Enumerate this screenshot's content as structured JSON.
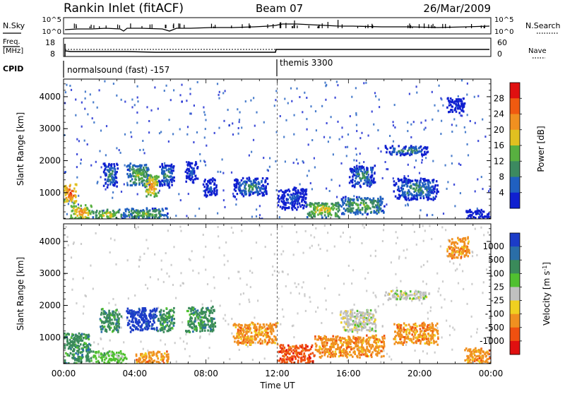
{
  "header": {
    "station": "Rankin Inlet (fitACF)",
    "beam": "Beam 07",
    "date": "26/Mar/2009"
  },
  "nsky_strip": {
    "left_label": "N.Sky",
    "left_ticks": [
      "10^5",
      "10^0"
    ],
    "right_ticks": [
      "10^5",
      "10^0"
    ],
    "right_label": "N.Search"
  },
  "freq_strip": {
    "left_label_1": "Freq.",
    "left_label_2": "[MHz]",
    "left_ticks": [
      "18",
      "8"
    ],
    "right_ticks": [
      "60",
      "0"
    ],
    "right_label": "Nave"
  },
  "cpid": {
    "label": "CPID",
    "segments": [
      {
        "start_hour": 0,
        "text": "normalsound (fast) -157"
      },
      {
        "start_hour": 12,
        "text": "themis 3300"
      }
    ]
  },
  "chart_data": [
    {
      "type": "heatmap",
      "panel": "power",
      "ylabel": "Slant Range [km]",
      "xlabel": "",
      "x_ticks": [
        "00:00",
        "04:00",
        "08:00",
        "12:00",
        "16:00",
        "20:00",
        "00:00"
      ],
      "y_ticks": [
        1000,
        2000,
        3000,
        4000
      ],
      "xlim_hours": [
        0,
        24
      ],
      "ylim_km": [
        180,
        4550
      ],
      "colorbar": {
        "label": "Power [dB]",
        "ticks": [
          "4",
          "8",
          "12",
          "16",
          "20",
          "24",
          "28"
        ],
        "colors": [
          "#1020d0",
          "#2060c0",
          "#3c8a60",
          "#58b040",
          "#e0c020",
          "#f09020",
          "#f05a10",
          "#e01010"
        ]
      },
      "regions": [
        {
          "t0": 0.0,
          "t1": 0.7,
          "r0": 700,
          "r1": 1300,
          "level": 7
        },
        {
          "t0": 0.3,
          "t1": 1.6,
          "r0": 180,
          "r1": 650,
          "level": 6
        },
        {
          "t0": 1.6,
          "t1": 3.2,
          "r0": 180,
          "r1": 500,
          "level": 5
        },
        {
          "t0": 3.2,
          "t1": 5.8,
          "r0": 180,
          "r1": 550,
          "level": 4
        },
        {
          "t0": 2.2,
          "t1": 3.0,
          "r0": 1200,
          "r1": 1950,
          "level": 3
        },
        {
          "t0": 3.5,
          "t1": 4.8,
          "r0": 1200,
          "r1": 1950,
          "level": 4
        },
        {
          "t0": 4.5,
          "t1": 5.3,
          "r0": 900,
          "r1": 1600,
          "level": 6
        },
        {
          "t0": 5.3,
          "t1": 6.2,
          "r0": 1200,
          "r1": 1950,
          "level": 3
        },
        {
          "t0": 6.8,
          "t1": 7.5,
          "r0": 1300,
          "r1": 2000,
          "level": 2
        },
        {
          "t0": 7.8,
          "t1": 8.6,
          "r0": 900,
          "r1": 1500,
          "level": 2
        },
        {
          "t0": 9.5,
          "t1": 11.5,
          "r0": 900,
          "r1": 1500,
          "level": 3
        },
        {
          "t0": 12.0,
          "t1": 13.6,
          "r0": 500,
          "r1": 1200,
          "level": 2
        },
        {
          "t0": 13.6,
          "t1": 15.5,
          "r0": 250,
          "r1": 750,
          "level": 5
        },
        {
          "t0": 15.5,
          "t1": 18.0,
          "r0": 350,
          "r1": 900,
          "level": 4
        },
        {
          "t0": 16.0,
          "t1": 17.5,
          "r0": 1200,
          "r1": 1900,
          "level": 3
        },
        {
          "t0": 18.0,
          "t1": 20.5,
          "r0": 2200,
          "r1": 2500,
          "level": 3
        },
        {
          "t0": 18.5,
          "t1": 21.0,
          "r0": 800,
          "r1": 1500,
          "level": 3
        },
        {
          "t0": 21.5,
          "t1": 22.5,
          "r0": 3500,
          "r1": 4000,
          "level": 1
        },
        {
          "t0": 22.5,
          "t1": 24.0,
          "r0": 200,
          "r1": 500,
          "level": 1
        }
      ]
    },
    {
      "type": "heatmap",
      "panel": "velocity",
      "ylabel": "Slant Range [km]",
      "xlabel": "Time UT",
      "x_ticks": [
        "00:00",
        "04:00",
        "08:00",
        "12:00",
        "16:00",
        "20:00",
        "00:00"
      ],
      "y_ticks": [
        1000,
        2000,
        3000,
        4000
      ],
      "xlim_hours": [
        0,
        24
      ],
      "ylim_km": [
        180,
        4550
      ],
      "colorbar": {
        "label": "Velocity [m s^-1]",
        "ticks": [
          "1000",
          "500",
          "100",
          "25",
          "-25",
          "-100",
          "-500",
          "-1000"
        ],
        "colors": [
          "#1c3cc8",
          "#2a6ea8",
          "#3a8a5a",
          "#50c030",
          "#c0c0c0",
          "#f0d020",
          "#f09020",
          "#f05010",
          "#e01010"
        ]
      },
      "regions": [
        {
          "t0": 0.0,
          "t1": 1.5,
          "r0": 200,
          "r1": 1200,
          "level": 2
        },
        {
          "t0": 1.5,
          "t1": 3.5,
          "r0": 200,
          "r1": 600,
          "level": 3
        },
        {
          "t0": 2.0,
          "t1": 3.2,
          "r0": 1200,
          "r1": 1950,
          "level": 2
        },
        {
          "t0": 3.5,
          "t1": 5.2,
          "r0": 1200,
          "r1": 1950,
          "level": 0
        },
        {
          "t0": 5.2,
          "t1": 6.2,
          "r0": 1200,
          "r1": 1950,
          "level": 2
        },
        {
          "t0": 4.0,
          "t1": 6.0,
          "r0": 200,
          "r1": 600,
          "level": 6
        },
        {
          "t0": 6.8,
          "t1": 8.5,
          "r0": 1200,
          "r1": 2000,
          "level": 2
        },
        {
          "t0": 9.5,
          "t1": 12.0,
          "r0": 800,
          "r1": 1500,
          "level": 6
        },
        {
          "t0": 12.0,
          "t1": 14.0,
          "r0": 200,
          "r1": 800,
          "level": 7
        },
        {
          "t0": 14.0,
          "t1": 18.0,
          "r0": 400,
          "r1": 1100,
          "level": 6
        },
        {
          "t0": 15.5,
          "t1": 17.5,
          "r0": 1200,
          "r1": 1900,
          "level": 4
        },
        {
          "t0": 18.0,
          "t1": 20.5,
          "r0": 2200,
          "r1": 2500,
          "level": 4
        },
        {
          "t0": 18.5,
          "t1": 21.0,
          "r0": 800,
          "r1": 1500,
          "level": 6
        },
        {
          "t0": 21.5,
          "t1": 22.8,
          "r0": 3500,
          "r1": 4200,
          "level": 6
        },
        {
          "t0": 22.5,
          "t1": 24.0,
          "r0": 200,
          "r1": 700,
          "level": 6
        }
      ]
    }
  ]
}
